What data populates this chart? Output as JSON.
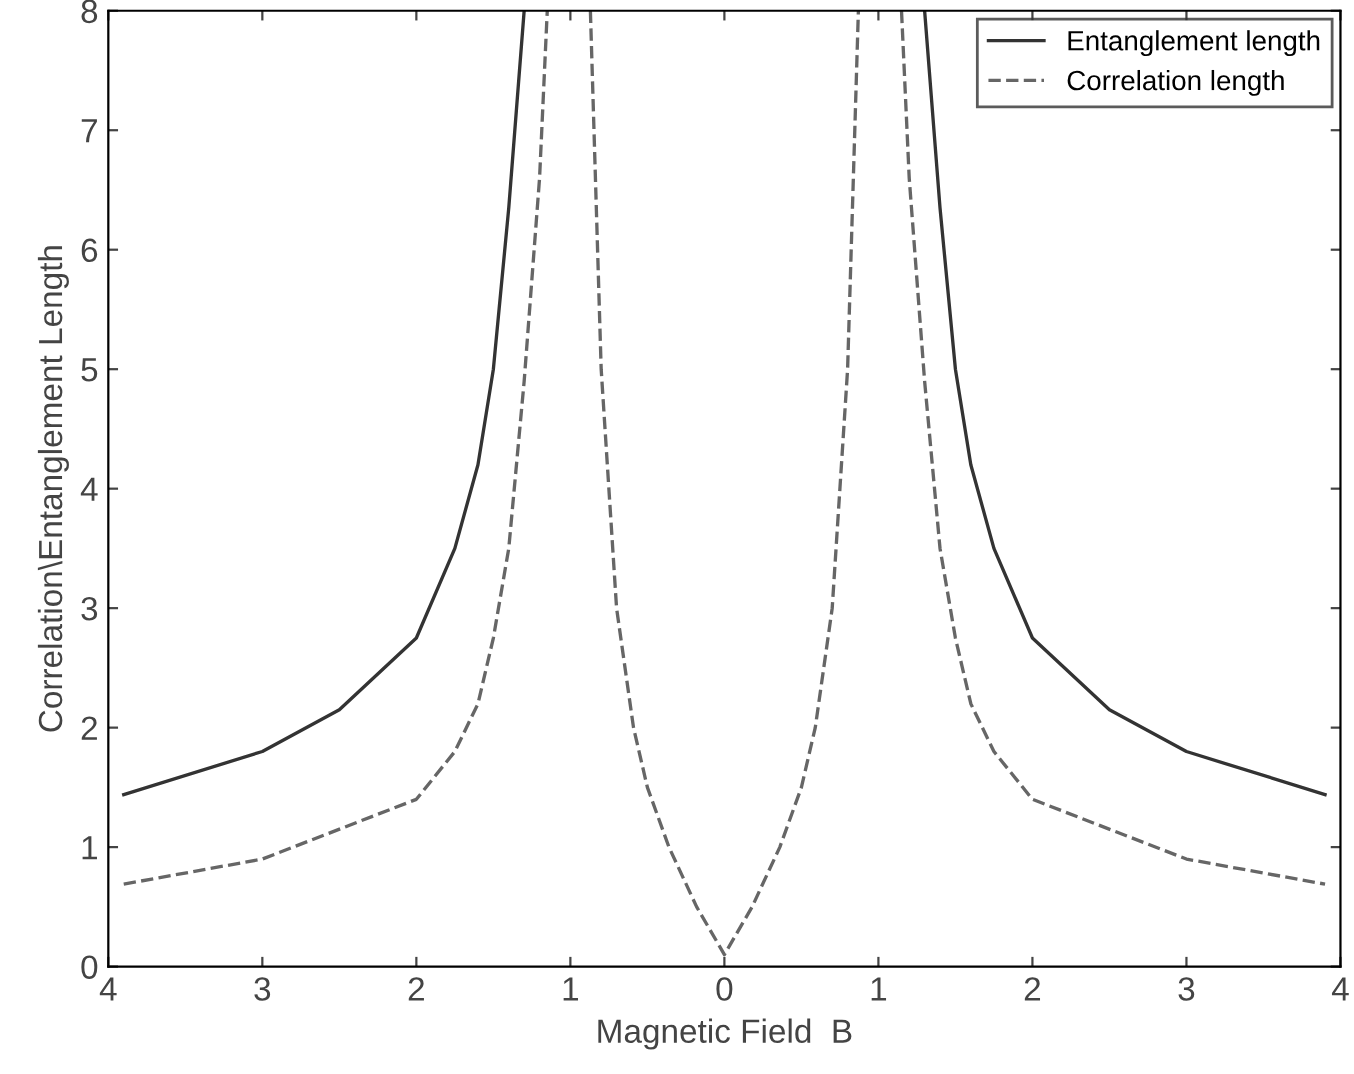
{
  "chart_data": {
    "type": "line",
    "xlabel": "Magnetic Field  B",
    "ylabel": "Correlation\\Entanglement Length",
    "xlim": [
      -4,
      4
    ],
    "ylim": [
      0,
      8
    ],
    "xticks": [
      {
        "value": -4,
        "label": "4"
      },
      {
        "value": -3,
        "label": "3"
      },
      {
        "value": -2,
        "label": "2"
      },
      {
        "value": -1,
        "label": "1"
      },
      0,
      1,
      2,
      3,
      4
    ],
    "yticks": [
      0,
      1,
      2,
      3,
      4,
      5,
      6,
      7,
      8
    ],
    "grid": false,
    "legend": "top right",
    "series": [
      {
        "name": "Entanglement length",
        "color": "#333333",
        "line_style": "solid",
        "x": [
          -3.9,
          -3,
          -2.5,
          -2,
          -1.75,
          -1.6,
          -1.5,
          -1.4,
          -1.3,
          null,
          1.3,
          1.4,
          1.5,
          1.6,
          1.75,
          2,
          2.5,
          3,
          3.9
        ],
        "values": [
          1.44,
          1.8,
          2.15,
          2.75,
          3.5,
          4.2,
          5.0,
          6.35,
          8,
          null,
          8,
          6.35,
          5.0,
          4.2,
          3.5,
          2.75,
          2.15,
          1.8,
          1.44
        ]
      },
      {
        "name": "Correlation length",
        "color": "#666666",
        "line_style": "dashed",
        "x": [
          -3.9,
          -3,
          -2,
          -1.75,
          -1.6,
          -1.5,
          -1.4,
          -1.3,
          -1.2,
          -1.15,
          null,
          -0.87,
          -0.8,
          -0.7,
          -0.59,
          -0.5,
          -0.36,
          -0.18,
          0,
          0.18,
          0.36,
          0.5,
          0.59,
          0.7,
          0.8,
          0.87,
          null,
          1.15,
          1.2,
          1.3,
          1.4,
          1.5,
          1.6,
          1.75,
          2,
          3,
          3.9
        ],
        "values": [
          0.69,
          0.9,
          1.4,
          1.8,
          2.2,
          2.75,
          3.5,
          4.9,
          6.6,
          8,
          null,
          8,
          5,
          3,
          2,
          1.5,
          1,
          0.5,
          0.1,
          0.5,
          1,
          1.5,
          2,
          3,
          5,
          8,
          null,
          8,
          6.6,
          4.9,
          3.5,
          2.75,
          2.2,
          1.8,
          1.4,
          0.9,
          0.69
        ]
      }
    ]
  }
}
